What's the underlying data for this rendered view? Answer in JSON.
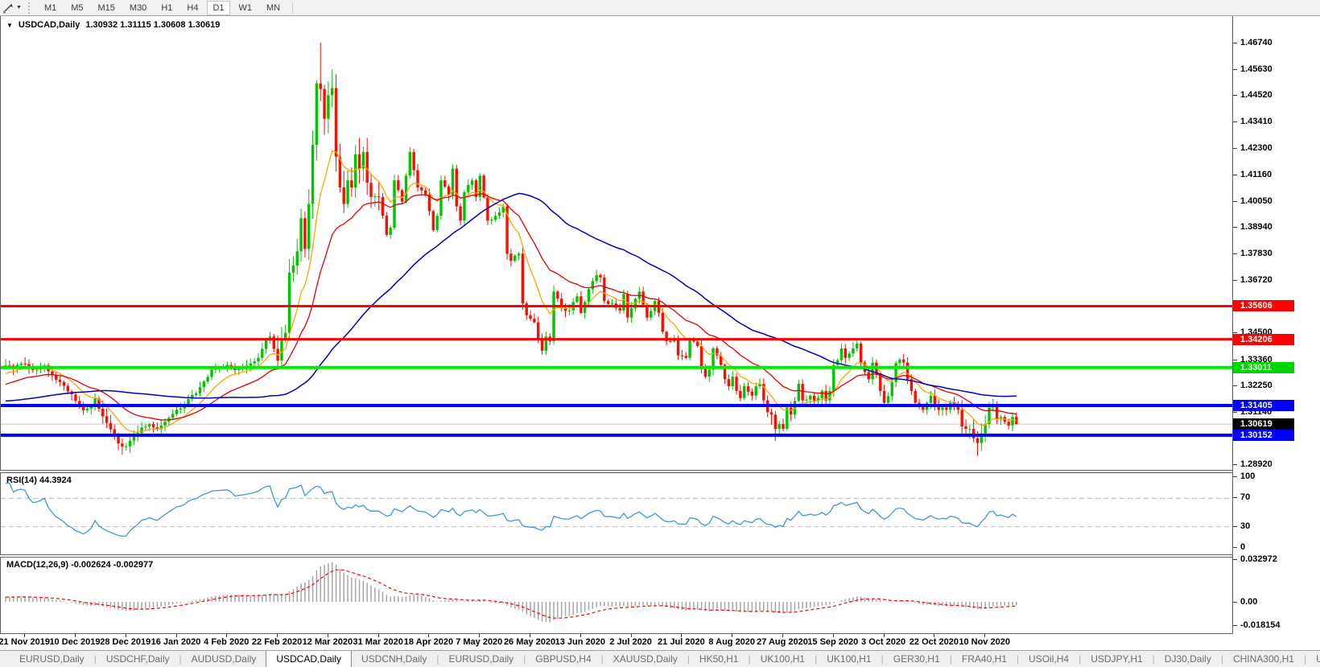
{
  "toolbar": {
    "cursor_tool": "trendline-cursor",
    "timeframes": [
      "M1",
      "M5",
      "M15",
      "M30",
      "H1",
      "H4",
      "D1",
      "W1",
      "MN"
    ],
    "active_timeframe": "D1"
  },
  "chart": {
    "header": {
      "symbol_period": "USDCAD,Daily",
      "ohlc_text": "1.30932 1.31115 1.30608 1.30619"
    }
  },
  "chart_data": {
    "type": "candlestick",
    "symbol": "USDCAD",
    "timeframe": "Daily",
    "current": {
      "open": 1.30932,
      "high": 1.31115,
      "low": 1.30608,
      "close": 1.30619
    },
    "colors": {
      "candle_up": "#00C400",
      "candle_down": "#FC0D00",
      "ma_fast": "#FFA500",
      "ma_mid": "#E60000",
      "ma_slow": "#0000BE",
      "current_price_line": "#C8C8C8",
      "rsi_line": "#4095E5",
      "rsi_levels": "#BDBDBD",
      "macd_hist": "#A6A6A6",
      "macd_signal": "#FF0000"
    },
    "y_axis_ticks": [
      "1.46740",
      "1.45630",
      "1.44520",
      "1.43410",
      "1.42300",
      "1.41160",
      "1.40050",
      "1.38940",
      "1.37830",
      "1.36720",
      "1.34500",
      "1.33360",
      "1.32250",
      "1.31140",
      "1.30030",
      "1.28920"
    ],
    "price_badges": [
      {
        "label": "1.35606",
        "color": "#FF0000"
      },
      {
        "label": "1.34206",
        "color": "#FF0000"
      },
      {
        "label": "1.33011",
        "color": "#00D500"
      },
      {
        "label": "1.31405",
        "color": "#0000FF"
      },
      {
        "label": "1.30619",
        "color": "#000000"
      },
      {
        "label": "1.30152",
        "color": "#0000FF"
      }
    ],
    "horizontal_lines": [
      {
        "price": 1.35606,
        "color": "#FF0000",
        "width": 3
      },
      {
        "price": 1.34206,
        "color": "#FF0000",
        "width": 3
      },
      {
        "price": 1.33011,
        "color": "#00EE00",
        "width": 4
      },
      {
        "price": 1.31405,
        "color": "#0000FF",
        "width": 4
      },
      {
        "price": 1.30152,
        "color": "#0000FF",
        "width": 4
      },
      {
        "price": 1.30619,
        "color": "#C8C8C8",
        "width": 1
      }
    ],
    "x_axis_labels": [
      "21 Nov 2019",
      "10 Dec 2019",
      "28 Dec 2019",
      "16 Jan 2020",
      "4 Feb 2020",
      "22 Feb 2020",
      "12 Mar 2020",
      "31 Mar 2020",
      "18 Apr 2020",
      "7 May 2020",
      "26 May 2020",
      "13 Jun 2020",
      "2 Jul 2020",
      "21 Jul 2020",
      "8 Aug 2020",
      "27 Aug 2020",
      "15 Sep 2020",
      "3 Oct 2020",
      "22 Oct 2020",
      "10 Nov 2020"
    ],
    "x_axis_label_indices": [
      5,
      18,
      31,
      44,
      57,
      70,
      83,
      96,
      109,
      122,
      135,
      148,
      161,
      174,
      187,
      200,
      213,
      226,
      239,
      252
    ],
    "prehistory_anchor_closes": [
      [
        -60,
        1.3245
      ],
      [
        -48,
        1.312
      ],
      [
        -38,
        1.3058
      ],
      [
        -30,
        1.308
      ],
      [
        -20,
        1.316
      ],
      [
        -10,
        1.3238
      ],
      [
        -1,
        1.3298
      ]
    ],
    "anchor_closes": [
      [
        0,
        1.331
      ],
      [
        2,
        1.3295
      ],
      [
        4,
        1.3318
      ],
      [
        6,
        1.33
      ],
      [
        8,
        1.3292
      ],
      [
        10,
        1.331
      ],
      [
        12,
        1.3268
      ],
      [
        14,
        1.324
      ],
      [
        16,
        1.32
      ],
      [
        18,
        1.316
      ],
      [
        20,
        1.312
      ],
      [
        22,
        1.314
      ],
      [
        23,
        1.317
      ],
      [
        25,
        1.3095
      ],
      [
        27,
        1.304
      ],
      [
        29,
        1.298
      ],
      [
        31,
        1.2968
      ],
      [
        33,
        1.3008
      ],
      [
        35,
        1.3048
      ],
      [
        37,
        1.3062
      ],
      [
        39,
        1.304
      ],
      [
        41,
        1.3072
      ],
      [
        43,
        1.3105
      ],
      [
        45,
        1.3128
      ],
      [
        47,
        1.3168
      ],
      [
        49,
        1.3192
      ],
      [
        51,
        1.3242
      ],
      [
        53,
        1.3292
      ],
      [
        55,
        1.3302
      ],
      [
        57,
        1.3312
      ],
      [
        59,
        1.329
      ],
      [
        61,
        1.3302
      ],
      [
        63,
        1.3318
      ],
      [
        65,
        1.3342
      ],
      [
        66,
        1.338
      ],
      [
        67,
        1.342
      ],
      [
        68,
        1.3432
      ],
      [
        69,
        1.338
      ],
      [
        70,
        1.333
      ],
      [
        71,
        1.3418
      ],
      [
        72,
        1.3448
      ],
      [
        73,
        1.3702
      ],
      [
        74,
        1.3732
      ],
      [
        75,
        1.3792
      ],
      [
        76,
        1.3932
      ],
      [
        77,
        1.3802
      ],
      [
        78,
        1.3992
      ],
      [
        79,
        1.4242
      ],
      [
        80,
        1.4502
      ],
      [
        81,
        1.4478
      ],
      [
        82,
        1.4352
      ],
      [
        83,
        1.4452
      ],
      [
        84,
        1.4482
      ],
      [
        85,
        1.4192
      ],
      [
        86,
        1.4062
      ],
      [
        87,
        1.3992
      ],
      [
        88,
        1.4092
      ],
      [
        89,
        1.4062
      ],
      [
        90,
        1.4202
      ],
      [
        91,
        1.4142
      ],
      [
        92,
        1.4212
      ],
      [
        93,
        1.4082
      ],
      [
        94,
        1.4022
      ],
      [
        96,
        1.4022
      ],
      [
        98,
        1.3862
      ],
      [
        99,
        1.3892
      ],
      [
        100,
        1.4092
      ],
      [
        102,
        1.4002
      ],
      [
        104,
        1.4212
      ],
      [
        106,
        1.4062
      ],
      [
        108,
        1.4032
      ],
      [
        109,
        1.3962
      ],
      [
        110,
        1.3882
      ],
      [
        111,
        1.3942
      ],
      [
        112,
        1.4092
      ],
      [
        114,
        1.4032
      ],
      [
        115,
        1.4142
      ],
      [
        116,
        1.3982
      ],
      [
        117,
        1.3922
      ],
      [
        118,
        1.4042
      ],
      [
        120,
        1.4092
      ],
      [
        121,
        1.4022
      ],
      [
        122,
        1.4112
      ],
      [
        124,
        1.3922
      ],
      [
        126,
        1.3942
      ],
      [
        128,
        1.3982
      ],
      [
        129,
        1.3782
      ],
      [
        130,
        1.3752
      ],
      [
        132,
        1.3782
      ],
      [
        133,
        1.3572
      ],
      [
        134,
        1.3522
      ],
      [
        136,
        1.3492
      ],
      [
        137,
        1.3422
      ],
      [
        138,
        1.3372
      ],
      [
        139,
        1.3432
      ],
      [
        140,
        1.3412
      ],
      [
        141,
        1.3622
      ],
      [
        142,
        1.3592
      ],
      [
        143,
        1.3552
      ],
      [
        145,
        1.3542
      ],
      [
        147,
        1.3602
      ],
      [
        148,
        1.3532
      ],
      [
        150,
        1.3632
      ],
      [
        152,
        1.3692
      ],
      [
        153,
        1.3682
      ],
      [
        154,
        1.3582
      ],
      [
        156,
        1.3572
      ],
      [
        158,
        1.3542
      ],
      [
        159,
        1.3612
      ],
      [
        160,
        1.3512
      ],
      [
        162,
        1.3592
      ],
      [
        163,
        1.3622
      ],
      [
        165,
        1.3512
      ],
      [
        167,
        1.3582
      ],
      [
        168,
        1.3532
      ],
      [
        169,
        1.3452
      ],
      [
        170,
        1.3412
      ],
      [
        172,
        1.3422
      ],
      [
        173,
        1.3352
      ],
      [
        175,
        1.3342
      ],
      [
        176,
        1.3422
      ],
      [
        178,
        1.3392
      ],
      [
        179,
        1.3302
      ],
      [
        180,
        1.3262
      ],
      [
        181,
        1.3292
      ],
      [
        182,
        1.3382
      ],
      [
        183,
        1.3352
      ],
      [
        184,
        1.3312
      ],
      [
        185,
        1.3252
      ],
      [
        186,
        1.3222
      ],
      [
        187,
        1.3262
      ],
      [
        188,
        1.3202
      ],
      [
        189,
        1.3172
      ],
      [
        190,
        1.3222
      ],
      [
        192,
        1.3182
      ],
      [
        193,
        1.3222
      ],
      [
        194,
        1.3232
      ],
      [
        195,
        1.3162
      ],
      [
        196,
        1.3112
      ],
      [
        197,
        1.3102
      ],
      [
        198,
        1.3042
      ],
      [
        199,
        1.3062
      ],
      [
        200,
        1.3042
      ],
      [
        201,
        1.3132
      ],
      [
        202,
        1.3102
      ],
      [
        204,
        1.3232
      ],
      [
        205,
        1.3162
      ],
      [
        207,
        1.3182
      ],
      [
        208,
        1.3162
      ],
      [
        209,
        1.3172
      ],
      [
        210,
        1.3202
      ],
      [
        211,
        1.3162
      ],
      [
        212,
        1.3202
      ],
      [
        213,
        1.3312
      ],
      [
        214,
        1.3332
      ],
      [
        215,
        1.3382
      ],
      [
        216,
        1.3342
      ],
      [
        217,
        1.336
      ],
      [
        218,
        1.3382
      ],
      [
        219,
        1.3402
      ],
      [
        220,
        1.3322
      ],
      [
        221,
        1.3282
      ],
      [
        222,
        1.3252
      ],
      [
        223,
        1.3322
      ],
      [
        224,
        1.3272
      ],
      [
        225,
        1.3202
      ],
      [
        226,
        1.3152
      ],
      [
        227,
        1.318
      ],
      [
        228,
        1.324
      ],
      [
        229,
        1.332
      ],
      [
        230,
        1.3335
      ],
      [
        231,
        1.3322
      ],
      [
        232,
        1.3252
      ],
      [
        233,
        1.3202
      ],
      [
        234,
        1.3152
      ],
      [
        235,
        1.3142
      ],
      [
        236,
        1.3122
      ],
      [
        237,
        1.3152
      ],
      [
        238,
        1.3182
      ],
      [
        239,
        1.3142
      ],
      [
        240,
        1.3122
      ],
      [
        241,
        1.3132
      ],
      [
        242,
        1.3122
      ],
      [
        243,
        1.3152
      ],
      [
        244,
        1.3142
      ],
      [
        245,
        1.3122
      ],
      [
        246,
        1.3052
      ],
      [
        247,
        1.3042
      ],
      [
        248,
        1.3042
      ],
      [
        249,
        1.3002
      ],
      [
        250,
        1.2982
      ],
      [
        251,
        1.3022
      ],
      [
        252,
        1.3062
      ],
      [
        253,
        1.3132
      ],
      [
        254,
        1.3142
      ],
      [
        255,
        1.3082
      ],
      [
        256,
        1.3092
      ],
      [
        257,
        1.3072
      ],
      [
        258,
        1.3056
      ],
      [
        259,
        1.3092
      ],
      [
        260,
        1.3062
      ]
    ],
    "wick_overrides": {
      "29": {
        "low": 1.2952
      },
      "81": {
        "high": 1.4674
      },
      "84": {
        "high": 1.456
      },
      "198": {
        "low": 1.2991
      },
      "250": {
        "low": 1.2928
      },
      "260": {
        "open": 1.30932,
        "high": 1.31115,
        "low": 1.30608,
        "close": 1.30619
      }
    },
    "moving_averages": [
      {
        "name": "fast",
        "type": "ema",
        "period": 10,
        "color": "#FFA500"
      },
      {
        "name": "mid",
        "type": "ema",
        "period": 25,
        "color": "#E60000"
      },
      {
        "name": "slow",
        "type": "sma",
        "period": 60,
        "color": "#0000BE"
      }
    ],
    "indicators": {
      "rsi": {
        "label": "RSI(14) 44.3924",
        "period": 14,
        "value": 44.3924,
        "levels": [
          70,
          30
        ],
        "axis_ticks": [
          "100",
          "70",
          "30",
          "0"
        ]
      },
      "macd": {
        "label": "MACD(12,26,9) -0.002624 -0.002977",
        "fast": 12,
        "slow": 26,
        "signal": 9,
        "values": [
          -0.002624,
          -0.002977
        ],
        "axis_ticks": [
          "0.032972",
          "0.00",
          "-0.018154"
        ]
      }
    }
  },
  "tabs": {
    "items": [
      "EURUSD,Daily",
      "USDCHF,Daily",
      "AUDUSD,Daily",
      "USDCAD,Daily",
      "USDCNH,Daily",
      "EURUSD,Daily",
      "GBPUSD,H4",
      "XAUUSD,Daily",
      "HK50,H1",
      "UK100,H1",
      "UK100,H1",
      "GER30,H1",
      "FRA40,H1",
      "USOil,H4",
      "USDJPY,H1",
      "DJ30,Daily",
      "CHINA300,H1",
      "USOil,Da"
    ],
    "active_index": 3,
    "scroll_left": "◄",
    "scroll_right": "►"
  }
}
